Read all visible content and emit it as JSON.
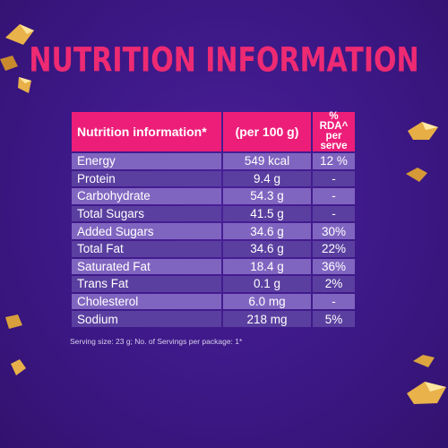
{
  "title": "NUTRITION INFORMATION",
  "table": {
    "headers": [
      "Nutrition information*",
      "(per 100 g)",
      "% RDA^",
      "per serve"
    ],
    "rows": [
      {
        "name": "Energy",
        "per100": "549 kcal",
        "rda": "12 %"
      },
      {
        "name": "Protein",
        "per100": "9.4 g",
        "rda": "-"
      },
      {
        "name": "Carbohydrate",
        "per100": "54.3 g",
        "rda": "-"
      },
      {
        "name": "Total Sugars",
        "per100": "41.5 g",
        "rda": "-"
      },
      {
        "name": "Added Sugars",
        "per100": "34.6 g",
        "rda": "30%"
      },
      {
        "name": "Total Fat",
        "per100": "34.6 g",
        "rda": "22%"
      },
      {
        "name": "Saturated Fat",
        "per100": "18.4 g",
        "rda": "36%"
      },
      {
        "name": "Trans Fat",
        "per100": "0.1 g",
        "rda": "2%"
      },
      {
        "name": "Cholesterol",
        "per100": "6.0 mg",
        "rda": "-"
      },
      {
        "name": "Sodium",
        "per100": "218 mg",
        "rda": "5%"
      }
    ]
  },
  "footnote": "Serving size: 23 g; No. of Servings per package: 1*",
  "colors": {
    "background": "#3c1886",
    "accent": "#ed1e79",
    "row_light": "#8065c0",
    "row_dark": "#5a3fa0"
  },
  "decorations": [
    "almond-pieces"
  ]
}
